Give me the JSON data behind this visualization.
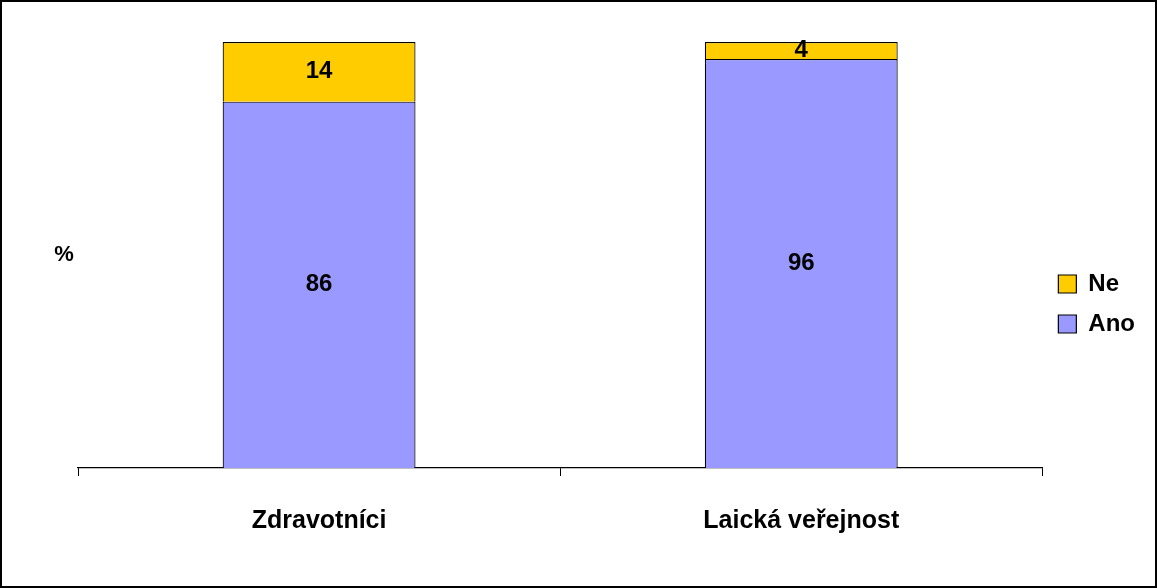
{
  "chart_data": {
    "type": "bar",
    "ylabel": "%",
    "categories": [
      "Zdravotníci",
      "Laická veřejnost"
    ],
    "stacked": true,
    "ylim": [
      0,
      100
    ],
    "tick_labels": "x",
    "data_labels": true,
    "legend": "right",
    "grid": false,
    "series": [
      {
        "name": "Ano",
        "color": "#9999ff",
        "values": [
          86,
          96
        ]
      },
      {
        "name": "Ne",
        "color": "#ffcc00",
        "values": [
          14,
          4
        ]
      }
    ]
  }
}
